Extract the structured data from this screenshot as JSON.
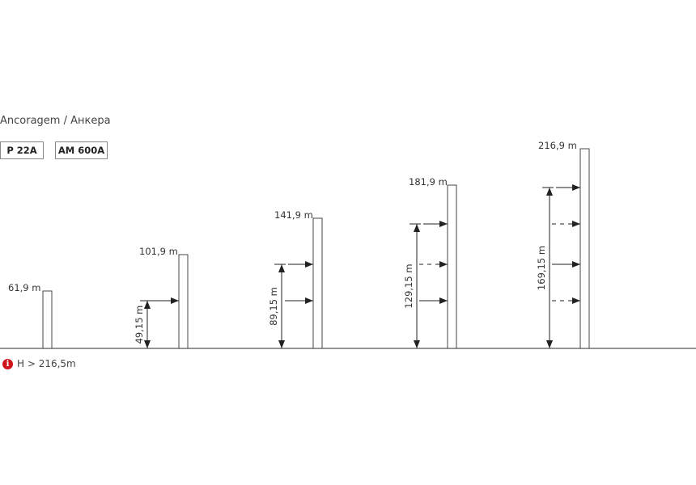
{
  "title": "Ancoragem / Анкера",
  "tags": [
    "P 22A",
    "AM 600A"
  ],
  "note": {
    "icon": "info-icon",
    "text": "H > 216,5m",
    "icon_color": "#d0121b"
  },
  "masts": [
    {
      "height_label": "61,9 m",
      "dimension_label": "",
      "anchors": []
    },
    {
      "height_label": "101,9 m",
      "dimension_label": "49,15 m",
      "anchors": [
        "solid"
      ]
    },
    {
      "height_label": "141,9 m",
      "dimension_label": "89,15 m",
      "anchors": [
        "solid",
        "solid"
      ]
    },
    {
      "height_label": "181,9 m",
      "dimension_label": "129,15 m",
      "anchors": [
        "solid",
        "dashed",
        "solid"
      ]
    },
    {
      "height_label": "216,9 m",
      "dimension_label": "169,15 m",
      "anchors": [
        "solid",
        "dashed",
        "solid",
        "dashed"
      ]
    }
  ]
}
